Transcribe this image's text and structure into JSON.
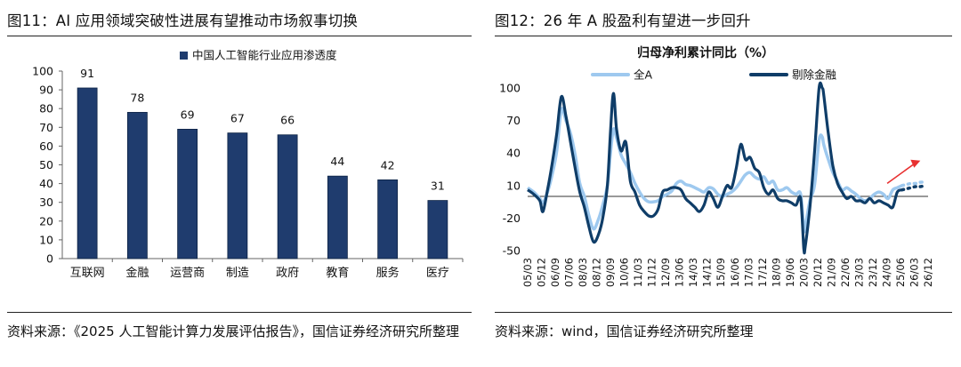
{
  "left": {
    "title": "图11：AI 应用领域突破性进展有望推动市场叙事切换",
    "source": "资料来源：《2025 人工智能计算力发展评估报告》，国信证券经济研究所整理"
  },
  "right": {
    "title": "图12：26 年 A 股盈利有望进一步回升",
    "source": "资料来源：wind，国信证券经济研究所整理"
  },
  "chart_data": [
    {
      "type": "bar",
      "legend": [
        "中国人工智能行业应用渗透度"
      ],
      "legend_position": "top",
      "categories": [
        "互联网",
        "金融",
        "运营商",
        "制造",
        "政府",
        "教育",
        "服务",
        "医疗"
      ],
      "series": [
        {
          "name": "中国人工智能行业应用渗透度",
          "values": [
            91,
            78,
            69,
            67,
            66,
            44,
            42,
            31
          ]
        }
      ],
      "data_labels": [
        "91",
        "78",
        "69",
        "67",
        "66",
        "44",
        "42",
        "31"
      ],
      "ylim": [
        0,
        100
      ],
      "yticks": [
        "100",
        "90",
        "80",
        "70",
        "60",
        "50",
        "40",
        "30",
        "20",
        "10",
        "0"
      ],
      "grid": false,
      "bar_color": "#1f3c6e"
    },
    {
      "type": "line",
      "title": "归母净利累计同比（%）",
      "legend_position": "top",
      "ylim": [
        -50,
        100
      ],
      "yticks": [
        "100",
        "70",
        "40",
        "10",
        "-20",
        "-50"
      ],
      "x_ticks": [
        "05/03",
        "05/12",
        "06/09",
        "07/06",
        "08/03",
        "08/12",
        "09/09",
        "10/06",
        "11/03",
        "11/12",
        "12/09",
        "13/06",
        "14/03",
        "14/12",
        "15/09",
        "16/06",
        "17/03",
        "17/12",
        "18/09",
        "19/06",
        "20/03",
        "20/12",
        "21/09",
        "22/06",
        "23/03",
        "23/12",
        "24/09",
        "25/06",
        "26/03",
        "26/12"
      ],
      "x_index": [
        2005.17,
        2005.92,
        2006.67,
        2007.42,
        2008.17,
        2008.92,
        2009.67,
        2010.42,
        2011.17,
        2011.92,
        2012.67,
        2013.42,
        2014.17,
        2014.92,
        2015.67,
        2016.42,
        2017.17,
        2017.92,
        2018.67,
        2019.42,
        2020.17,
        2020.92,
        2021.67,
        2022.42,
        2023.17,
        2023.92,
        2024.67,
        2025.42,
        2026.17,
        2026.92
      ],
      "series": [
        {
          "name": "全A",
          "color": "#9ec9ef",
          "x": [
            2005.17,
            2005.5,
            2005.83,
            2006.0,
            2006.25,
            2006.5,
            2006.75,
            2007.0,
            2007.25,
            2007.5,
            2007.75,
            2008.0,
            2008.25,
            2008.5,
            2008.75,
            2009.0,
            2009.25,
            2009.5,
            2009.67,
            2009.83,
            2010.0,
            2010.25,
            2010.5,
            2010.75,
            2011.0,
            2011.25,
            2011.5,
            2011.75,
            2012.0,
            2012.25,
            2012.5,
            2012.75,
            2013.0,
            2013.25,
            2013.5,
            2013.75,
            2014.0,
            2014.25,
            2014.5,
            2014.75,
            2015.0,
            2015.25,
            2015.5,
            2015.75,
            2016.0,
            2016.25,
            2016.5,
            2016.75,
            2017.0,
            2017.25,
            2017.5,
            2017.75,
            2018.0,
            2018.25,
            2018.5,
            2018.75,
            2019.0,
            2019.25,
            2019.5,
            2019.75,
            2020.0,
            2020.17,
            2020.25,
            2020.5,
            2020.75,
            2021.0,
            2021.17,
            2021.25,
            2021.5,
            2021.75,
            2022.0,
            2022.25,
            2022.5,
            2022.75,
            2023.0,
            2023.25,
            2023.5,
            2023.75,
            2024.0,
            2024.25,
            2024.5,
            2024.75,
            2025.0,
            2025.25,
            2025.5
          ],
          "values": [
            8,
            4,
            -2,
            -6,
            4,
            20,
            42,
            80,
            70,
            58,
            38,
            12,
            0,
            -18,
            -30,
            -22,
            -8,
            10,
            40,
            62,
            54,
            38,
            30,
            22,
            12,
            4,
            -2,
            -5,
            -5,
            -4,
            0,
            2,
            5,
            12,
            14,
            11,
            10,
            8,
            6,
            4,
            8,
            7,
            2,
            0,
            2,
            4,
            8,
            14,
            20,
            22,
            18,
            16,
            18,
            12,
            14,
            6,
            6,
            8,
            4,
            2,
            2,
            -30,
            -28,
            -4,
            10,
            52,
            55,
            48,
            34,
            22,
            14,
            6,
            8,
            5,
            2,
            -2,
            -4,
            -2,
            2,
            4,
            2,
            -2,
            6,
            8,
            10
          ],
          "forecast": {
            "x": [
              2025.5,
              2025.75,
              2026.0,
              2026.25,
              2026.5,
              2026.75
            ],
            "values": [
              10,
              11,
              12,
              12,
              13,
              13
            ]
          }
        },
        {
          "name": "剔除金融",
          "color": "#0f3d68",
          "x": [
            2005.17,
            2005.5,
            2005.83,
            2006.0,
            2006.25,
            2006.5,
            2006.75,
            2007.0,
            2007.25,
            2007.5,
            2007.75,
            2008.0,
            2008.25,
            2008.5,
            2008.75,
            2009.0,
            2009.25,
            2009.5,
            2009.67,
            2009.83,
            2010.0,
            2010.25,
            2010.5,
            2010.75,
            2011.0,
            2011.25,
            2011.5,
            2011.75,
            2012.0,
            2012.25,
            2012.5,
            2012.75,
            2013.0,
            2013.25,
            2013.5,
            2013.75,
            2014.0,
            2014.25,
            2014.5,
            2014.75,
            2015.0,
            2015.25,
            2015.5,
            2015.75,
            2016.0,
            2016.25,
            2016.5,
            2016.75,
            2017.0,
            2017.25,
            2017.5,
            2017.75,
            2018.0,
            2018.25,
            2018.5,
            2018.75,
            2019.0,
            2019.25,
            2019.5,
            2019.75,
            2020.0,
            2020.17,
            2020.25,
            2020.5,
            2020.75,
            2021.0,
            2021.17,
            2021.25,
            2021.5,
            2021.75,
            2022.0,
            2022.25,
            2022.5,
            2022.75,
            2023.0,
            2023.25,
            2023.5,
            2023.75,
            2024.0,
            2024.25,
            2024.5,
            2024.75,
            2025.0,
            2025.25,
            2025.5
          ],
          "values": [
            6,
            2,
            -4,
            -14,
            6,
            30,
            58,
            92,
            74,
            50,
            26,
            4,
            -10,
            -28,
            -42,
            -36,
            -20,
            10,
            60,
            95,
            62,
            42,
            50,
            14,
            4,
            -8,
            -14,
            -18,
            -18,
            -12,
            4,
            6,
            8,
            8,
            6,
            -2,
            -6,
            -10,
            -14,
            -8,
            4,
            -2,
            -10,
            0,
            10,
            8,
            26,
            48,
            34,
            36,
            26,
            22,
            8,
            2,
            6,
            -2,
            -4,
            -4,
            -6,
            -8,
            -2,
            -48,
            -46,
            -10,
            40,
            120,
            118,
            94,
            58,
            28,
            12,
            4,
            -2,
            0,
            -4,
            -4,
            -6,
            -2,
            -6,
            -4,
            -6,
            -8,
            -10,
            4,
            6
          ],
          "forecast": {
            "x": [
              2025.5,
              2025.75,
              2026.0,
              2026.25,
              2026.5,
              2026.75
            ],
            "values": [
              6,
              7,
              8,
              9,
              9,
              10
            ]
          }
        }
      ],
      "grid": false
    }
  ]
}
